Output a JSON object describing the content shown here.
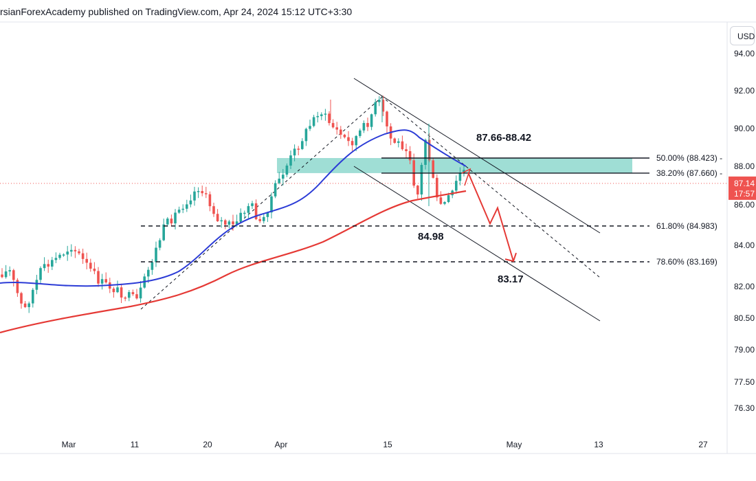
{
  "header": {
    "text": "rsianForexAcademy published on TradingView.com, Apr 24, 2024 15:12 UTC+3:30"
  },
  "price_scale": {
    "currency_label": "USD",
    "last_price_label": "87.14",
    "countdown_label": "17:57",
    "ticks": [
      "94.00",
      "92.00",
      "90.00",
      "88.00",
      "86.00",
      "84.00",
      "82.00",
      "80.50",
      "79.00",
      "77.50",
      "76.30"
    ]
  },
  "colors": {
    "candle_up": "#26a69a",
    "candle_down": "#ef5350",
    "ma_fast": "#2b3bd6",
    "ma_slow": "#e53935",
    "zone": "#7fd3c7",
    "forecast_arrow": "#e53935",
    "last_price_badge": "#ef5350"
  },
  "chart_data": {
    "type": "candlestick",
    "time_axis_labels": [
      "Mar",
      "11",
      "20",
      "Apr",
      "15",
      "May",
      "13",
      "27"
    ],
    "annotations": {
      "zone_label": "87.66-88.42",
      "level_labels": [
        "84.98",
        "83.17"
      ],
      "fib_levels": [
        {
          "label": "50.00% (88.423)",
          "value": 88.423
        },
        {
          "label": "38.20% (87.660)",
          "value": 87.66
        },
        {
          "label": "61.80% (84.983)",
          "value": 84.983
        },
        {
          "label": "78.60% (83.169)",
          "value": 83.169
        }
      ]
    },
    "forecast_path": [
      87.7,
      85.1,
      85.9,
      83.2
    ]
  }
}
